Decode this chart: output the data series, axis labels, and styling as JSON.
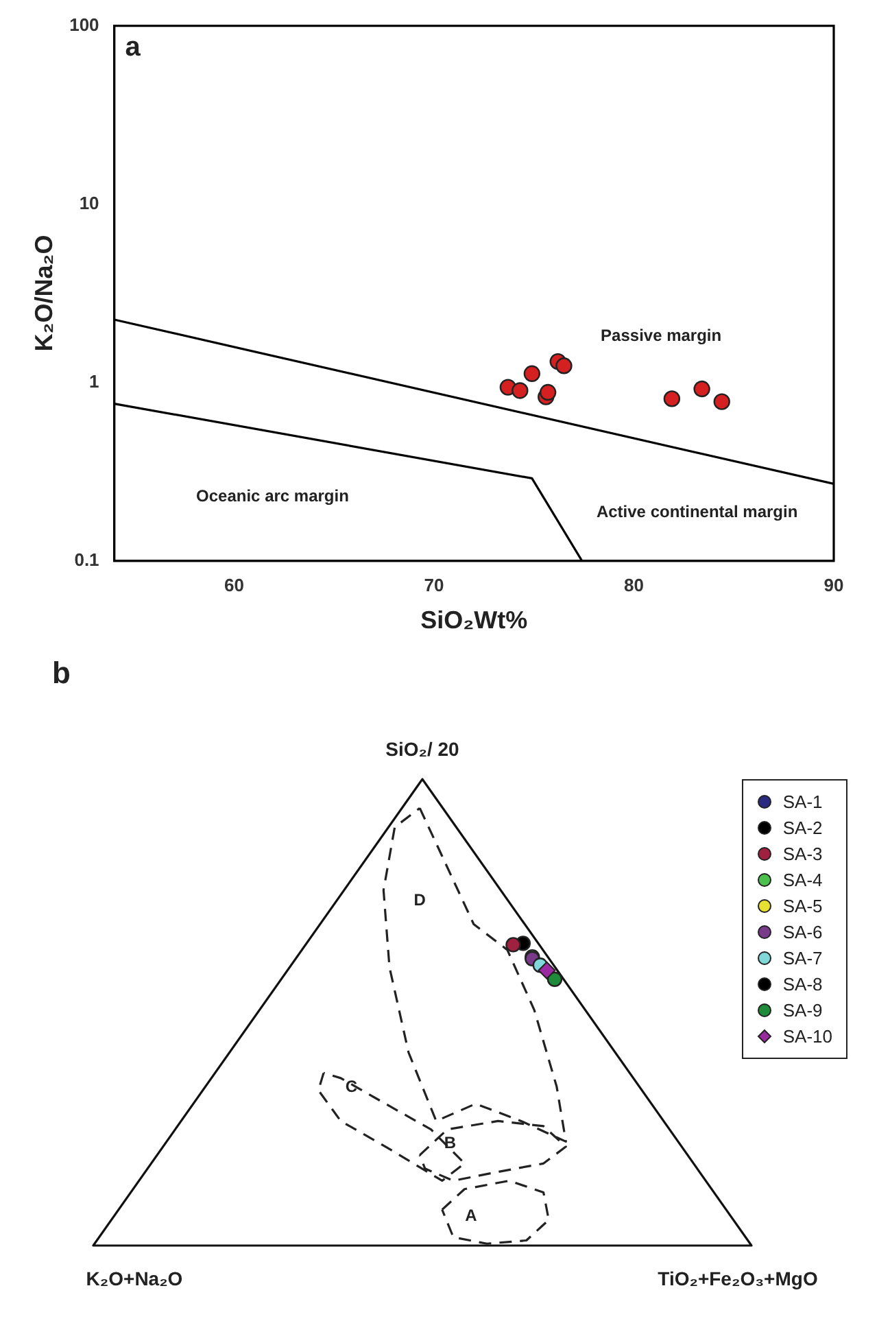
{
  "chart_data": [
    {
      "type": "scatter",
      "title": "a",
      "xlabel": "SiO₂Wt%",
      "ylabel": "K₂O/Na₂O",
      "log": "y",
      "xlim": [
        54,
        90
      ],
      "xticks": [
        60,
        70,
        80,
        90
      ],
      "ylim": [
        0.1,
        100
      ],
      "yticks": [
        0.1,
        1,
        10,
        100
      ],
      "grid": false,
      "annotations": [
        "Passive margin",
        "Oceanic arc margin",
        "Active continental margin"
      ],
      "series": [
        {
          "type": "scatter",
          "marker": "circle",
          "color": "#d42020",
          "x": [
            73.7,
            74.3,
            74.9,
            75.6,
            75.7,
            76.2,
            76.5,
            81.9,
            83.4,
            84.4
          ],
          "values": [
            0.94,
            0.9,
            1.12,
            0.83,
            0.88,
            1.31,
            1.24,
            0.81,
            0.92,
            0.78
          ]
        },
        {
          "type": "line",
          "color": "#000000",
          "line_style": "solid",
          "x": [
            54,
            90
          ],
          "values": [
            2.25,
            0.27
          ]
        },
        {
          "type": "line",
          "color": "#000000",
          "line_style": "solid",
          "x": [
            54,
            74.9,
            77.4
          ],
          "values": [
            0.76,
            0.29,
            0.1
          ]
        }
      ]
    },
    {
      "type": "other",
      "title": "b",
      "legend": "top right",
      "annotations": [
        "SiO₂/ 20",
        "K₂O+Na₂O",
        "TiO₂+Fe₂O₃+MgO",
        "D",
        "C",
        "B",
        "A"
      ],
      "series": [
        {
          "name": "SA-1",
          "color": "#2a2a80",
          "marker": "circle"
        },
        {
          "name": "SA-2",
          "color": "#000000",
          "marker": "circle"
        },
        {
          "name": "SA-3",
          "color": "#a02040",
          "marker": "circle"
        },
        {
          "name": "SA-4",
          "color": "#4cc04c",
          "marker": "circle"
        },
        {
          "name": "SA-5",
          "color": "#e8e030",
          "marker": "circle"
        },
        {
          "name": "SA-6",
          "color": "#7a3a8a",
          "marker": "circle"
        },
        {
          "name": "SA-7",
          "color": "#80d8d8",
          "marker": "circle"
        },
        {
          "name": "SA-8",
          "color": "#000000",
          "marker": "circle"
        },
        {
          "name": "SA-9",
          "color": "#1e8a3a",
          "marker": "circle"
        },
        {
          "name": "SA-10",
          "color": "#9a2aa0",
          "marker": "diamond"
        }
      ]
    }
  ]
}
